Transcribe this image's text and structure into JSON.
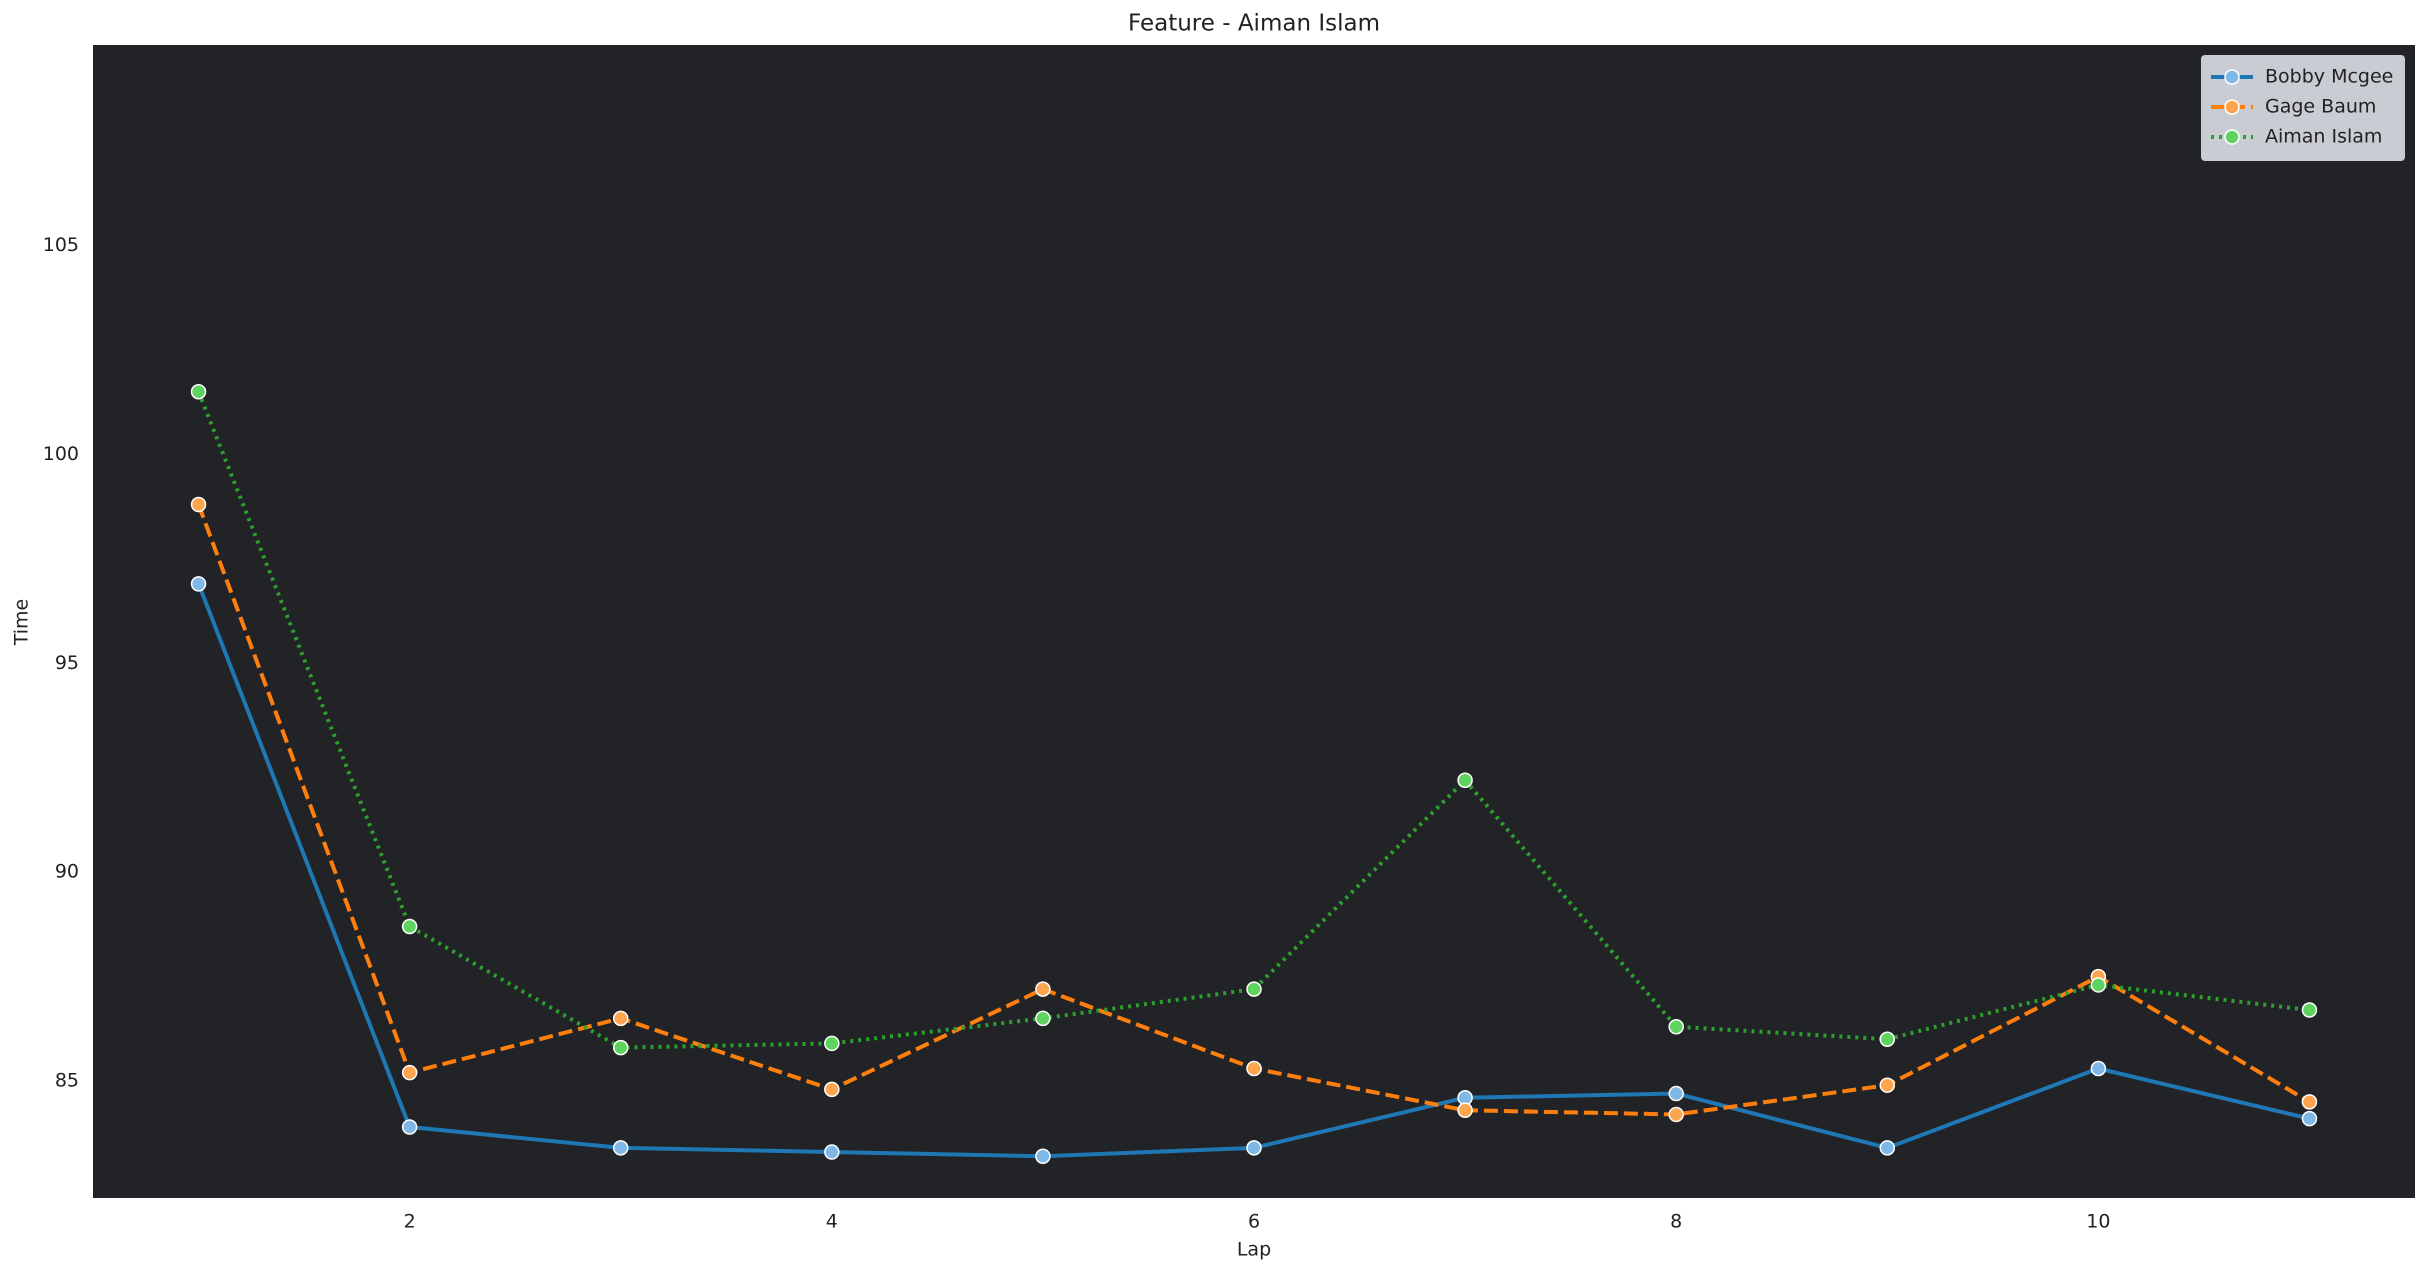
{
  "chart_data": {
    "type": "line",
    "title": "Feature - Aiman Islam",
    "x_label": "Lap",
    "y_label": "Time",
    "x": [
      1,
      2,
      3,
      4,
      5,
      6,
      7,
      8,
      9,
      10,
      11
    ],
    "series": [
      {
        "name": "Bobby Mcgee",
        "color": "#1f77b4",
        "marker_color": "#7fb8e6",
        "dash": "solid",
        "values": [
          96.9,
          83.9,
          83.4,
          83.3,
          83.2,
          83.4,
          84.6,
          84.7,
          83.4,
          85.3,
          84.1
        ]
      },
      {
        "name": "Gage Baum",
        "color": "#ff7f0e",
        "marker_color": "#ffa54f",
        "dash": "dashed",
        "values": [
          98.8,
          85.2,
          86.5,
          84.8,
          87.2,
          85.3,
          84.3,
          84.2,
          84.9,
          87.5,
          84.5
        ]
      },
      {
        "name": "Aiman Islam",
        "color": "#2ca02c",
        "marker_color": "#5fd35f",
        "dash": "dotted",
        "values": [
          101.5,
          88.7,
          85.8,
          85.9,
          86.5,
          87.2,
          92.2,
          86.3,
          86.0,
          87.3,
          86.7
        ]
      }
    ],
    "xlim": [
      0.5,
      11.5
    ],
    "ylim": [
      82.2,
      109.8
    ],
    "xticks": [
      2,
      4,
      6,
      8,
      10
    ],
    "yticks": [
      85,
      90,
      95,
      100,
      105
    ],
    "grid": false,
    "legend": "upper right",
    "plot_background": "#212327"
  }
}
